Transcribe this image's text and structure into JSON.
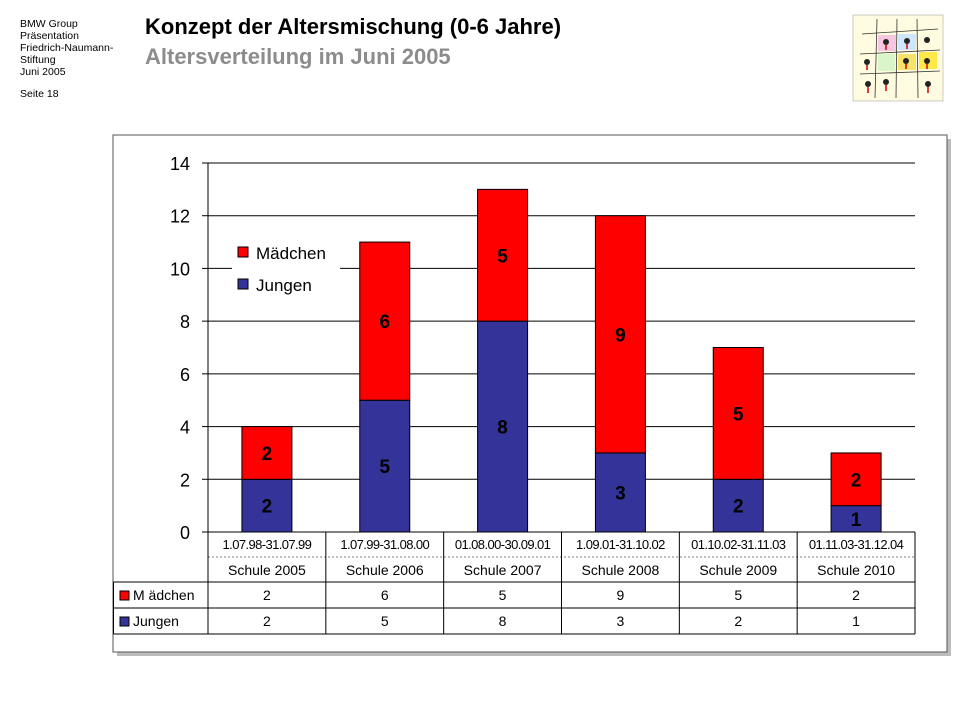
{
  "header": {
    "org_lines": [
      "BMW Group",
      "Präsentation",
      "Friedrich-Naumann-",
      "Stiftung",
      "Juni 2005"
    ],
    "page": "Seite 18",
    "title": "Konzept der Altersmischung (0-6 Jahre)",
    "subtitle": "Altersverteilung im Juni 2005"
  },
  "logo": {
    "icon": "children-grid-logo-icon"
  },
  "chart_data": {
    "type": "bar",
    "stacked": true,
    "categories": [
      [
        "1.07.98-31.07.99",
        "Schule 2005"
      ],
      [
        "1.07.99-31.08.00",
        "Schule 2006"
      ],
      [
        "01.08.00-30.09.01",
        "Schule 2007"
      ],
      [
        "1.09.01-31.10.02",
        "Schule 2008"
      ],
      [
        "01.10.02-31.11.03",
        "Schule 2009"
      ],
      [
        "01.11.03-31.12.04",
        "Schule 2010"
      ]
    ],
    "series": [
      {
        "name": "Jungen",
        "color": "#333399",
        "values": [
          2,
          5,
          8,
          3,
          2,
          1
        ]
      },
      {
        "name": "Mädchen",
        "color": "#ff0000",
        "values": [
          2,
          6,
          5,
          9,
          5,
          2
        ]
      }
    ],
    "ylim": [
      0,
      14
    ],
    "yticks": [
      0,
      2,
      4,
      6,
      8,
      10,
      12,
      14
    ],
    "grid": true,
    "legend": {
      "position": "upper-left",
      "entries": [
        "Mädchen",
        "Jungen"
      ]
    },
    "data_table": {
      "rows": [
        {
          "label": "M ädchen",
          "color": "#ff0000",
          "values": [
            "2",
            "6",
            "5",
            "9",
            "5",
            "2"
          ]
        },
        {
          "label": "Jungen",
          "color": "#333399",
          "values": [
            "2",
            "5",
            "8",
            "3",
            "2",
            "1"
          ]
        }
      ]
    }
  }
}
